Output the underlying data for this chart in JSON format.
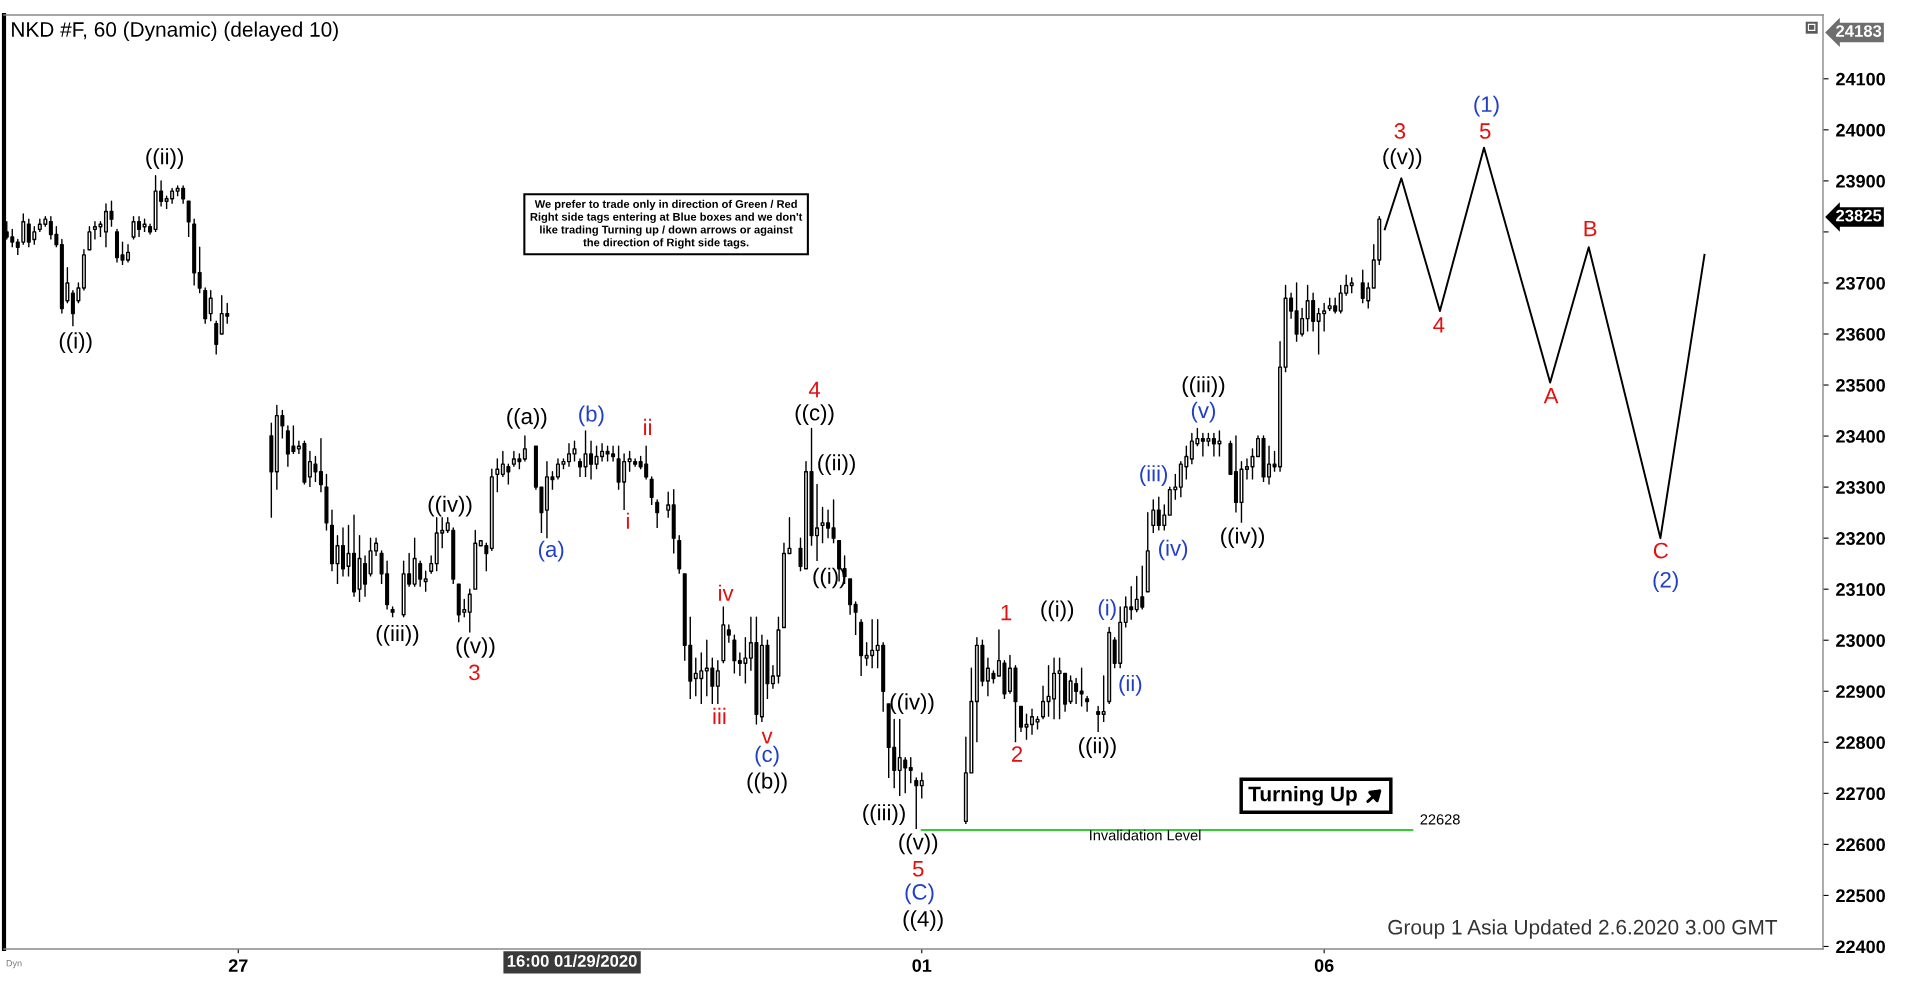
{
  "chart_data": {
    "type": "candlestick",
    "title": "NKD #F, 60 (Dynamic) (delayed 10)",
    "color": "#000000",
    "categories": [
      null,
      null,
      null,
      null,
      null,
      null,
      null,
      null,
      null,
      null,
      null,
      null,
      null,
      null,
      null,
      null,
      null,
      null,
      null,
      null,
      null,
      null,
      null,
      null,
      null,
      null,
      null,
      null,
      null,
      null,
      null,
      null,
      null,
      null,
      null,
      null,
      null,
      null,
      null,
      null,
      null,
      null,
      "27",
      null,
      null,
      null,
      null,
      null,
      null,
      null,
      null,
      null,
      null,
      null,
      null,
      null,
      null,
      null,
      null,
      null,
      null,
      null,
      null,
      null,
      null,
      null,
      null,
      null,
      null,
      null,
      null,
      null,
      null,
      null,
      null,
      null,
      null,
      null,
      null,
      null,
      null,
      null,
      null,
      null,
      null,
      null,
      null,
      null,
      null,
      null,
      null,
      null,
      null,
      null,
      null,
      null,
      null,
      null,
      null,
      null,
      null,
      null,
      null,
      null,
      null,
      null,
      null,
      null,
      null,
      null,
      null,
      null,
      null,
      null,
      null,
      null,
      null,
      null,
      null,
      null,
      null,
      null,
      null,
      null,
      null,
      null,
      null,
      null,
      null,
      null,
      null,
      null,
      null,
      null,
      null,
      null,
      null,
      null,
      null,
      null,
      null,
      null,
      null,
      null,
      null,
      null,
      null,
      null,
      null,
      null,
      null,
      null,
      null,
      null,
      null,
      null,
      null,
      null,
      null,
      null,
      null,
      null,
      null,
      null,
      null,
      null,
      "01",
      null,
      null,
      null,
      null,
      null,
      null,
      null,
      null,
      null,
      null,
      null,
      null,
      null,
      null,
      null,
      null,
      null,
      null,
      null,
      null,
      null,
      null,
      null,
      null,
      null,
      null,
      null,
      null,
      null,
      null,
      null,
      null,
      null,
      null,
      null,
      null,
      null,
      null,
      null,
      null,
      null,
      null,
      null,
      null,
      null,
      null,
      null,
      null,
      null,
      null,
      null,
      null,
      null,
      null,
      null,
      null,
      null,
      null,
      null,
      null,
      null,
      null,
      null,
      null,
      null,
      null,
      null,
      null,
      null,
      null,
      null,
      null,
      "06",
      null,
      null,
      null,
      null,
      null,
      null,
      null,
      null,
      null,
      null,
      null,
      null,
      null,
      null,
      null,
      null,
      null,
      null,
      null,
      null,
      null,
      null,
      null,
      null,
      null,
      null,
      null,
      null,
      null,
      null,
      null,
      null,
      null,
      null,
      null,
      null,
      null,
      null,
      null,
      null,
      null,
      null,
      null,
      null,
      null,
      null,
      null,
      null,
      null,
      null,
      null,
      null,
      null,
      null,
      null,
      null,
      null,
      null,
      null,
      null,
      null,
      null,
      null,
      null,
      null,
      null,
      null,
      null,
      null,
      null,
      null,
      null,
      null,
      null,
      null,
      null,
      null,
      null,
      null,
      null,
      null,
      null,
      null,
      null,
      null,
      null,
      null,
      null,
      null,
      null
    ],
    "ohlc": [
      [
        23800,
        23820,
        23785,
        23790
      ],
      [
        23790,
        23805,
        23770,
        23780
      ],
      [
        23780,
        23785,
        23755,
        23770
      ],
      [
        23780,
        23835,
        23775,
        23820
      ],
      [
        23815,
        23825,
        23770,
        23780
      ],
      [
        23785,
        23810,
        23775,
        23800
      ],
      [
        23805,
        23825,
        23800,
        23815
      ],
      [
        23815,
        23830,
        23810,
        23825
      ],
      [
        23820,
        23830,
        23785,
        23795
      ],
      [
        23795,
        23810,
        23770,
        23775
      ],
      [
        23775,
        23785,
        23640,
        23650
      ],
      [
        23665,
        23730,
        23660,
        23700
      ],
      [
        23680,
        23685,
        23615,
        23640
      ],
      [
        23665,
        23700,
        23660,
        23690
      ],
      [
        23690,
        23765,
        23685,
        23755
      ],
      [
        23765,
        23810,
        23765,
        23800
      ],
      [
        23805,
        23820,
        23785,
        23810
      ],
      [
        23810,
        23820,
        23790,
        23815
      ],
      [
        23800,
        23855,
        23770,
        23840
      ],
      [
        23840,
        23860,
        23810,
        23825
      ],
      [
        23800,
        23805,
        23740,
        23750
      ],
      [
        23755,
        23780,
        23735,
        23745
      ],
      [
        23745,
        23775,
        23740,
        23760
      ],
      [
        23790,
        23830,
        23785,
        23820
      ],
      [
        23820,
        23830,
        23790,
        23805
      ],
      [
        23810,
        23825,
        23800,
        23815
      ],
      [
        23810,
        23815,
        23795,
        23800
      ],
      [
        23805,
        23910,
        23800,
        23880
      ],
      [
        23880,
        23900,
        23850,
        23860
      ],
      [
        23860,
        23870,
        23845,
        23865
      ],
      [
        23865,
        23885,
        23855,
        23880
      ],
      [
        23880,
        23890,
        23870,
        23885
      ],
      [
        23885,
        23890,
        23855,
        23865
      ],
      [
        23860,
        23860,
        23790,
        23820
      ],
      [
        23815,
        23825,
        23695,
        23720
      ],
      [
        23720,
        23770,
        23680,
        23690
      ],
      [
        23685,
        23690,
        23620,
        23630
      ],
      [
        23640,
        23685,
        23625,
        23670
      ],
      [
        23620,
        23625,
        23560,
        23580
      ],
      [
        23600,
        23675,
        23600,
        23640
      ],
      [
        23640,
        23660,
        23620,
        23635
      ],
      null,
      null,
      null,
      null,
      null,
      null,
      null,
      [
        23400,
        23425,
        23240,
        23330
      ],
      [
        23330,
        23460,
        23295,
        23440
      ],
      [
        23440,
        23450,
        23395,
        23420
      ],
      [
        23410,
        23420,
        23340,
        23365
      ],
      [
        23380,
        23420,
        23365,
        23370
      ],
      [
        23375,
        23390,
        23365,
        23380
      ],
      [
        23385,
        23390,
        23305,
        23310
      ],
      [
        23320,
        23370,
        23300,
        23350
      ],
      [
        23345,
        23360,
        23310,
        23330
      ],
      [
        23330,
        23395,
        23290,
        23305
      ],
      [
        23300,
        23325,
        23215,
        23230
      ],
      [
        23225,
        23255,
        23135,
        23150
      ],
      [
        23150,
        23205,
        23110,
        23185
      ],
      [
        23185,
        23220,
        23125,
        23140
      ],
      [
        23145,
        23225,
        23125,
        23170
      ],
      [
        23170,
        23245,
        23085,
        23095
      ],
      [
        23100,
        23205,
        23075,
        23160
      ],
      [
        23150,
        23165,
        23085,
        23110
      ],
      [
        23130,
        23200,
        23125,
        23175
      ],
      [
        23175,
        23200,
        23165,
        23190
      ],
      [
        23170,
        23175,
        23110,
        23130
      ],
      [
        23130,
        23155,
        23060,
        23070
      ],
      [
        23060,
        23065,
        23045,
        23055
      ],
      null,
      [
        23050,
        23155,
        23045,
        23130
      ],
      [
        23130,
        23170,
        23105,
        23110
      ],
      [
        23110,
        23200,
        23105,
        23160
      ],
      [
        23150,
        23155,
        23105,
        23120
      ],
      [
        23115,
        23135,
        23095,
        23120
      ],
      [
        23135,
        23165,
        23130,
        23150
      ],
      [
        23150,
        23240,
        23135,
        23210
      ],
      [
        23210,
        23240,
        23180,
        23215
      ],
      [
        23215,
        23240,
        23210,
        23230
      ],
      [
        23215,
        23220,
        23110,
        23120
      ],
      [
        23110,
        23110,
        23035,
        23050
      ],
      [
        23055,
        23080,
        23045,
        23060
      ],
      [
        23055,
        23100,
        23015,
        23090
      ],
      [
        23100,
        23215,
        23100,
        23190
      ],
      [
        23185,
        23195,
        23185,
        23195
      ],
      [
        23185,
        23190,
        23135,
        23170
      ],
      [
        23180,
        23335,
        23175,
        23320
      ],
      [
        23325,
        23355,
        23290,
        23335
      ],
      [
        23325,
        23370,
        23320,
        23345
      ],
      [
        23340,
        23345,
        23305,
        23330
      ],
      [
        23345,
        23370,
        23340,
        23355
      ],
      [
        23355,
        23365,
        23335,
        23350
      ],
      [
        23355,
        23400,
        23350,
        23375
      ],
      null,
      [
        23380,
        23380,
        23295,
        23300
      ],
      [
        23300,
        23300,
        23210,
        23250
      ],
      [
        23255,
        23350,
        23200,
        23320
      ],
      [
        23320,
        23330,
        23295,
        23315
      ],
      [
        23320,
        23355,
        23315,
        23345
      ],
      [
        23345,
        23355,
        23335,
        23350
      ],
      [
        23350,
        23385,
        23340,
        23365
      ],
      [
        23365,
        23390,
        23350,
        23375
      ],
      [
        23350,
        23355,
        23320,
        23340
      ],
      [
        23340,
        23410,
        23320,
        23365
      ],
      [
        23365,
        23390,
        23315,
        23345
      ],
      [
        23345,
        23380,
        23335,
        23360
      ],
      [
        23360,
        23385,
        23350,
        23370
      ],
      [
        23370,
        23380,
        23350,
        23365
      ],
      [
        23365,
        23380,
        23350,
        23360
      ],
      [
        23355,
        23380,
        23295,
        23310
      ],
      [
        23310,
        23365,
        23255,
        23350
      ],
      [
        23350,
        23370,
        23330,
        23355
      ],
      [
        23350,
        23355,
        23340,
        23345
      ],
      [
        23350,
        23360,
        23335,
        23340
      ],
      [
        23345,
        23380,
        23315,
        23320
      ],
      [
        23315,
        23320,
        23265,
        23280
      ],
      [
        23270,
        23275,
        23220,
        23250
      ],
      null,
      [
        23255,
        23290,
        23240,
        23265
      ],
      [
        23265,
        23295,
        23170,
        23200
      ],
      [
        23195,
        23205,
        23130,
        23140
      ],
      [
        23130,
        23130,
        22960,
        22990
      ],
      [
        22990,
        23045,
        22885,
        22920
      ],
      [
        22925,
        22965,
        22890,
        22935
      ],
      [
        22925,
        22975,
        22875,
        22940
      ],
      [
        22940,
        23000,
        22890,
        22945
      ],
      [
        22945,
        22965,
        22875,
        22910
      ],
      [
        22910,
        22960,
        22875,
        22940
      ],
      [
        22960,
        23065,
        22955,
        23030
      ],
      [
        23020,
        23030,
        22995,
        23010
      ],
      [
        23000,
        23010,
        22935,
        22960
      ],
      [
        22960,
        22975,
        22930,
        22955
      ],
      [
        22955,
        23005,
        22915,
        22965
      ],
      [
        22965,
        23045,
        22940,
        22995
      ],
      [
        22995,
        23045,
        22835,
        22855
      ],
      [
        22850,
        23010,
        22840,
        22990
      ],
      [
        22990,
        23000,
        22885,
        22915
      ],
      [
        22915,
        22950,
        22905,
        22930
      ],
      [
        22930,
        23045,
        22915,
        23020
      ],
      [
        23025,
        23190,
        23025,
        23170
      ],
      [
        23170,
        23240,
        23170,
        23180
      ],
      null,
      [
        23180,
        23200,
        23135,
        23145
      ],
      [
        23140,
        23350,
        23140,
        23330
      ],
      [
        23330,
        23415,
        23185,
        23205
      ],
      [
        23205,
        23305,
        23155,
        23220
      ],
      [
        23225,
        23260,
        23190,
        23230
      ],
      [
        23230,
        23255,
        23200,
        23220
      ],
      [
        23220,
        23275,
        23190,
        23200
      ],
      [
        23195,
        23195,
        23115,
        23140
      ],
      [
        23140,
        23165,
        23110,
        23125
      ],
      [
        23120,
        23120,
        23050,
        23070
      ],
      [
        23070,
        23075,
        23010,
        23055
      ],
      [
        23035,
        23040,
        22930,
        22970
      ],
      [
        22965,
        22995,
        22950,
        22970
      ],
      [
        22970,
        23040,
        22945,
        22980
      ],
      [
        22980,
        23040,
        22945,
        22990
      ],
      [
        22990,
        22995,
        22860,
        22900
      ],
      [
        22875,
        22875,
        22730,
        22790
      ],
      [
        22790,
        22845,
        22710,
        22745
      ],
      [
        22745,
        22845,
        22695,
        22770
      ],
      [
        22765,
        22770,
        22700,
        22750
      ],
      [
        22750,
        22770,
        22720,
        22745
      ],
      [
        22725,
        22730,
        22630,
        22715
      ],
      [
        22715,
        22740,
        22690,
        22725
      ],
      null,
      null,
      null,
      null,
      null,
      null,
      null,
      [
        22645,
        22810,
        22640,
        22740
      ],
      [
        22740,
        22945,
        22740,
        22880
      ],
      [
        22880,
        23005,
        22800,
        22990
      ],
      [
        22990,
        23000,
        22910,
        22920
      ],
      [
        22920,
        22965,
        22890,
        22945
      ],
      [
        22935,
        22940,
        22915,
        22925
      ],
      [
        22930,
        23020,
        22930,
        22960
      ],
      [
        22955,
        22960,
        22885,
        22895
      ],
      [
        22900,
        22970,
        22895,
        22945
      ],
      [
        22945,
        22950,
        22800,
        22880
      ],
      [
        22870,
        22870,
        22820,
        22830
      ],
      [
        22830,
        22855,
        22805,
        22835
      ],
      [
        22835,
        22865,
        22815,
        22850
      ],
      [
        22840,
        22850,
        22825,
        22845
      ],
      [
        22850,
        22910,
        22845,
        22880
      ],
      [
        22880,
        22950,
        22850,
        22890
      ],
      [
        22885,
        22965,
        22845,
        22935
      ],
      [
        22935,
        22965,
        22845,
        22940
      ],
      [
        22935,
        22935,
        22860,
        22875
      ],
      [
        22880,
        22930,
        22875,
        22920
      ],
      [
        22915,
        22925,
        22875,
        22900
      ],
      [
        22900,
        22945,
        22870,
        22895
      ],
      [
        22885,
        22890,
        22860,
        22880
      ],
      null,
      [
        22860,
        22870,
        22820,
        22855
      ],
      [
        22855,
        22930,
        22840,
        22860
      ],
      [
        22880,
        23025,
        22875,
        23015
      ],
      [
        23000,
        23005,
        22945,
        22955
      ],
      [
        22955,
        23065,
        22945,
        23035
      ],
      [
        23035,
        23085,
        23025,
        23065
      ],
      [
        23065,
        23105,
        23040,
        23060
      ],
      [
        23060,
        23125,
        23055,
        23080
      ],
      [
        23085,
        23145,
        23060,
        23065
      ],
      [
        23095,
        23250,
        23095,
        23175
      ],
      [
        23225,
        23275,
        23210,
        23255
      ],
      [
        23255,
        23280,
        23215,
        23225
      ],
      [
        23225,
        23265,
        23215,
        23245
      ],
      [
        23245,
        23300,
        23245,
        23295
      ],
      [
        23295,
        23325,
        23275,
        23300
      ],
      [
        23300,
        23350,
        23280,
        23345
      ],
      [
        23340,
        23380,
        23315,
        23360
      ],
      [
        23355,
        23405,
        23345,
        23390
      ],
      [
        23385,
        23415,
        23380,
        23395
      ],
      [
        23395,
        23405,
        23360,
        23390
      ],
      [
        23390,
        23405,
        23380,
        23395
      ],
      [
        23395,
        23405,
        23360,
        23385
      ],
      [
        23385,
        23410,
        23360,
        23390
      ],
      null,
      [
        23385,
        23390,
        23325,
        23325
      ],
      [
        23330,
        23400,
        23250,
        23270
      ],
      [
        23270,
        23350,
        23230,
        23335
      ],
      [
        23335,
        23355,
        23315,
        23340
      ],
      [
        23340,
        23375,
        23315,
        23360
      ],
      [
        23360,
        23400,
        23360,
        23395
      ],
      [
        23395,
        23400,
        23310,
        23320
      ],
      [
        23320,
        23380,
        23305,
        23345
      ],
      [
        23345,
        23370,
        23330,
        23340
      ],
      [
        23340,
        23585,
        23330,
        23535
      ],
      [
        23535,
        23695,
        23525,
        23670
      ],
      [
        23670,
        23680,
        23630,
        23645
      ],
      [
        23645,
        23700,
        23585,
        23600
      ],
      [
        23600,
        23650,
        23595,
        23630
      ],
      [
        23630,
        23695,
        23605,
        23665
      ],
      [
        23665,
        23680,
        23605,
        23625
      ],
      [
        23625,
        23650,
        23560,
        23640
      ],
      [
        23640,
        23660,
        23605,
        23645
      ],
      [
        23650,
        23670,
        23645,
        23655
      ],
      [
        23655,
        23670,
        23640,
        23645
      ],
      [
        23645,
        23695,
        23640,
        23680
      ],
      [
        23680,
        23715,
        23675,
        23695
      ],
      [
        23695,
        23710,
        23680,
        23700
      ],
      null,
      [
        23700,
        23725,
        23660,
        23670
      ],
      [
        23665,
        23700,
        23650,
        23690
      ],
      [
        23690,
        23775,
        23690,
        23745
      ],
      [
        23745,
        23830,
        23735,
        23825
      ],
      null,
      null,
      null,
      null,
      null,
      null,
      null,
      null,
      null,
      null,
      null,
      null,
      null,
      null,
      null,
      null,
      null,
      null,
      null,
      null,
      null,
      null,
      null,
      null,
      null,
      null,
      null,
      null,
      null,
      null,
      null,
      null,
      null,
      null,
      null,
      null,
      null,
      null,
      null,
      null,
      null,
      null,
      null,
      null,
      null,
      null,
      null,
      null,
      null,
      null,
      null,
      null,
      null,
      null,
      null,
      null,
      null,
      null,
      null,
      null,
      null,
      null,
      null,
      null,
      null,
      null,
      null,
      null,
      null,
      null,
      null,
      null,
      null,
      null,
      null,
      null,
      null,
      null,
      null,
      null
    ],
    "series": [
      {
        "type": "line",
        "color": "#000000",
        "values": [
          null,
          null,
          null,
          null,
          null,
          null,
          null,
          null,
          null,
          null,
          null,
          null,
          null,
          null,
          null,
          null,
          null,
          null,
          null,
          null,
          null,
          null,
          null,
          null,
          null,
          null,
          null,
          null,
          null,
          null,
          null,
          null,
          null,
          null,
          null,
          null,
          null,
          null,
          null,
          null,
          null,
          null,
          null,
          null,
          null,
          null,
          null,
          null,
          null,
          null,
          null,
          null,
          null,
          null,
          null,
          null,
          null,
          null,
          null,
          null,
          null,
          null,
          null,
          null,
          null,
          null,
          null,
          null,
          null,
          null,
          null,
          null,
          null,
          null,
          null,
          null,
          null,
          null,
          null,
          null,
          null,
          null,
          null,
          null,
          null,
          null,
          null,
          null,
          null,
          null,
          null,
          null,
          null,
          null,
          null,
          null,
          null,
          null,
          null,
          null,
          null,
          null,
          null,
          null,
          null,
          null,
          null,
          null,
          null,
          null,
          null,
          null,
          null,
          null,
          null,
          null,
          null,
          null,
          null,
          null,
          null,
          null,
          null,
          null,
          null,
          null,
          null,
          null,
          null,
          null,
          null,
          null,
          null,
          null,
          null,
          null,
          null,
          null,
          null,
          null,
          null,
          null,
          null,
          null,
          null,
          null,
          null,
          null,
          null,
          null,
          null,
          null,
          null,
          null,
          null,
          null,
          null,
          null,
          null,
          null,
          null,
          null,
          null,
          null,
          null,
          null,
          null,
          null,
          null,
          null,
          null,
          null,
          null,
          null,
          null,
          null,
          null,
          null,
          null,
          null,
          null,
          null,
          null,
          null,
          null,
          null,
          null,
          null,
          null,
          null,
          null,
          null,
          null,
          null,
          null,
          null,
          null,
          null,
          null,
          null,
          null,
          null,
          null,
          null,
          null,
          null,
          null,
          null,
          null,
          null,
          null,
          null,
          null,
          null,
          null,
          null,
          null,
          null,
          null,
          null,
          null,
          null,
          null,
          null,
          null,
          null,
          null,
          null,
          null,
          null,
          null,
          null,
          null,
          null,
          null,
          null,
          null,
          null,
          null,
          null,
          null,
          null,
          null,
          null,
          null,
          null,
          null,
          null,
          null,
          null,
          23805,
          null,
          null,
          23905,
          null,
          null,
          null,
          null,
          null,
          null,
          23645,
          null,
          null,
          null,
          null,
          null,
          null,
          null,
          23965,
          null,
          null,
          null,
          null,
          null,
          null,
          null,
          null,
          null,
          null,
          null,
          23505,
          null,
          null,
          null,
          null,
          null,
          null,
          23770,
          null,
          null,
          null,
          null,
          null,
          null,
          null,
          null,
          null,
          null,
          null,
          null,
          23200,
          null,
          null,
          null,
          null,
          null,
          null,
          null,
          23755,
          null,
          null,
          null,
          null,
          null,
          null,
          null,
          null,
          null,
          null,
          null,
          null,
          null,
          null,
          null,
          null,
          null,
          null,
          null,
          null,
          null
        ]
      },
      {
        "type": "line",
        "color": "#33cc33",
        "values": [
          null,
          null,
          null,
          null,
          null,
          null,
          null,
          null,
          null,
          null,
          null,
          null,
          null,
          null,
          null,
          null,
          null,
          null,
          null,
          null,
          null,
          null,
          null,
          null,
          null,
          null,
          null,
          null,
          null,
          null,
          null,
          null,
          null,
          null,
          null,
          null,
          null,
          null,
          null,
          null,
          null,
          null,
          null,
          null,
          null,
          null,
          null,
          null,
          null,
          null,
          null,
          null,
          null,
          null,
          null,
          null,
          null,
          null,
          null,
          null,
          null,
          null,
          null,
          null,
          null,
          null,
          null,
          null,
          null,
          null,
          null,
          null,
          null,
          null,
          null,
          null,
          null,
          null,
          null,
          null,
          null,
          null,
          null,
          null,
          null,
          null,
          null,
          null,
          null,
          null,
          null,
          null,
          null,
          null,
          null,
          null,
          null,
          null,
          null,
          null,
          null,
          null,
          null,
          null,
          null,
          null,
          null,
          null,
          null,
          null,
          null,
          null,
          null,
          null,
          null,
          null,
          null,
          null,
          null,
          null,
          null,
          null,
          null,
          null,
          null,
          null,
          null,
          null,
          null,
          null,
          null,
          null,
          null,
          null,
          null,
          null,
          null,
          null,
          null,
          null,
          null,
          null,
          null,
          null,
          null,
          null,
          null,
          null,
          null,
          null,
          null,
          null,
          null,
          null,
          null,
          null,
          null,
          null,
          null,
          null,
          null,
          null,
          null,
          null,
          null,
          null,
          22628,
          null,
          null,
          null,
          null,
          null,
          null,
          null,
          null,
          null,
          null,
          null,
          null,
          null,
          null,
          null,
          null,
          null,
          null,
          null,
          null,
          null,
          null,
          null,
          null,
          null,
          null,
          null,
          null,
          null,
          null,
          null,
          null,
          null,
          null,
          null,
          null,
          null,
          null,
          null,
          null,
          null,
          null,
          null,
          null,
          null,
          null,
          null,
          null,
          null,
          null,
          null,
          null,
          null,
          null,
          null,
          null,
          null,
          null,
          null,
          null,
          null,
          null,
          null,
          null,
          null,
          null,
          null,
          null,
          null,
          null,
          null,
          null,
          null,
          null,
          null,
          null,
          null,
          null,
          null,
          null,
          null,
          null,
          null,
          null,
          null,
          null,
          null,
          null,
          22628,
          null,
          null,
          null,
          null,
          null,
          null,
          null,
          null,
          null,
          null,
          null,
          null,
          null,
          null,
          null,
          null,
          null,
          null,
          null,
          null,
          null,
          null,
          null,
          null,
          null,
          null,
          null,
          null,
          null,
          null,
          null,
          null,
          null,
          null,
          null,
          null,
          null,
          null,
          null,
          null,
          null,
          null,
          null,
          null,
          null,
          null,
          null,
          null,
          null,
          null,
          null,
          null,
          null,
          null,
          null,
          null,
          null,
          null,
          null,
          null,
          null,
          null,
          null,
          null,
          null,
          null,
          null,
          null,
          null,
          null,
          null,
          null,
          null,
          null
        ]
      }
    ],
    "ylim": [
      22395,
      24225
    ],
    "yticks": [
      22400,
      22500,
      22600,
      22700,
      22800,
      22900,
      23000,
      23100,
      23200,
      23300,
      23400,
      23500,
      23600,
      23700,
      {
        "value": 23800,
        "label": null
      },
      23900,
      24000,
      24100
    ],
    "annotations": [
      "((i))",
      "((ii))",
      "((iii))",
      "((iv))",
      "((v))",
      "((a))",
      "((b))",
      "((c))",
      "((ii))",
      "((i))",
      "((iv))",
      "((iii))",
      "((v))",
      "((4))",
      "((i))",
      "((ii))",
      "((iii))",
      "((iv))",
      "((v))",
      "3",
      "i",
      "ii",
      "iii",
      "iv",
      "v",
      "4",
      "5",
      "1",
      "2",
      "3",
      "4",
      "5",
      "A",
      "B",
      "C",
      "(a)",
      "(b)",
      "(c)",
      "(C)",
      "(i)",
      "(ii)",
      "(iii)",
      "(iv)",
      "(v)",
      "(1)",
      "(2)",
      "22628",
      "Invalidation Level",
      "We prefer to trade only in direction of Green / Red\nRight side tags entering at Blue boxes and we don't\nlike trading Turning up / down arrows or against\nthe direction of Right side tags.",
      "Turning Up",
      "Group 1 Asia Updated 2.6.2020 3.00 GMT",
      "Dyn",
      "16:00 01/29/2020",
      "24183",
      "23825"
    ]
  }
}
